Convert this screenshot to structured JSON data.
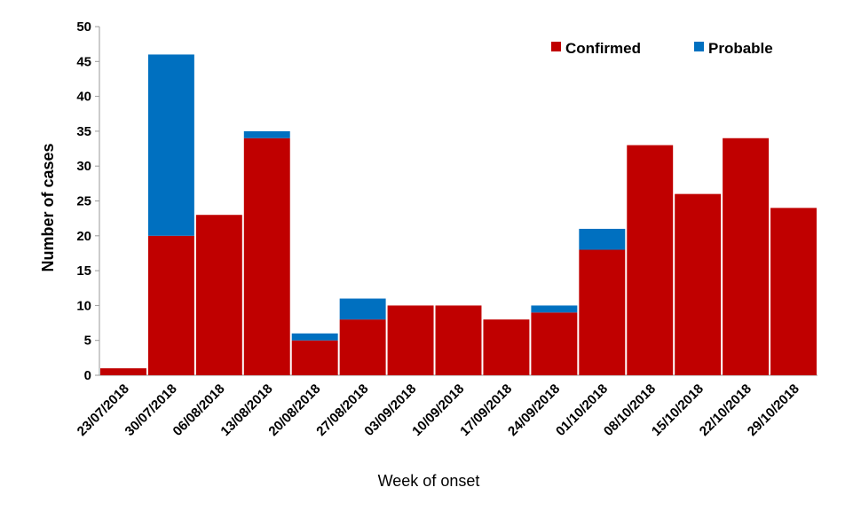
{
  "chart_data": {
    "type": "bar",
    "stacked": true,
    "title": "",
    "xlabel": "Week of onset",
    "ylabel": "Number of cases",
    "ylim": [
      0,
      50
    ],
    "yticks": [
      0,
      5,
      10,
      15,
      20,
      25,
      30,
      35,
      40,
      45,
      50
    ],
    "grid": false,
    "legend_position": "top-right",
    "categories": [
      "23/07/2018",
      "30/07/2018",
      "06/08/2018",
      "13/08/2018",
      "20/08/2018",
      "27/08/2018",
      "03/09/2018",
      "10/09/2018",
      "17/09/2018",
      "24/09/2018",
      "01/10/2018",
      "08/10/2018",
      "15/10/2018",
      "22/10/2018",
      "29/10/2018"
    ],
    "series": [
      {
        "name": "Confirmed",
        "color": "#C00000",
        "values": [
          1,
          20,
          23,
          34,
          5,
          8,
          10,
          10,
          8,
          9,
          18,
          33,
          26,
          34,
          24
        ]
      },
      {
        "name": "Probable",
        "color": "#0070C0",
        "values": [
          0,
          26,
          0,
          1,
          1,
          3,
          0,
          0,
          0,
          1,
          3,
          0,
          0,
          0,
          0
        ]
      }
    ]
  }
}
